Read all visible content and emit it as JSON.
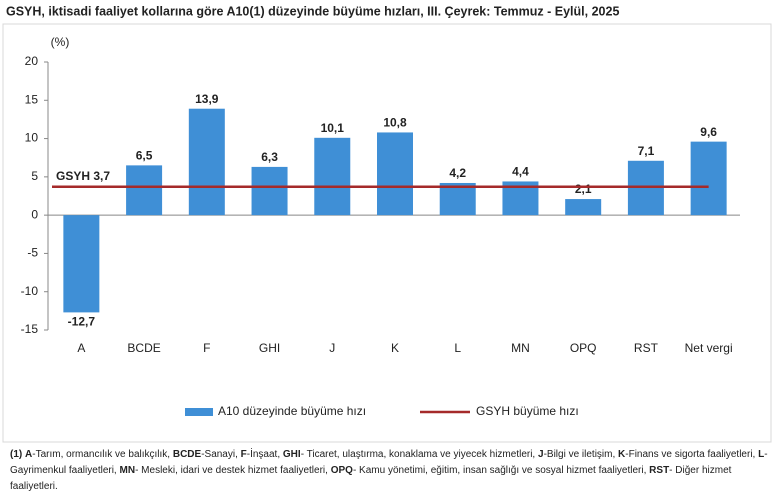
{
  "chart_data": {
    "type": "bar",
    "title": "GSYH, iktisadi faaliyet kollarına göre A10(1) düzeyinde büyüme hızları, III. Çeyrek: Temmuz - Eylül, 2025",
    "y_unit": "(%)",
    "categories": [
      "A",
      "BCDE",
      "F",
      "GHI",
      "J",
      "K",
      "L",
      "MN",
      "OPQ",
      "RST",
      "Net vergi"
    ],
    "series": [
      {
        "name": "A10 düzeyinde büyüme hızı",
        "color": "#3f8fd6",
        "values": [
          -12.7,
          6.5,
          13.9,
          6.3,
          10.1,
          10.8,
          4.2,
          4.4,
          2.1,
          7.1,
          9.6
        ],
        "value_labels": [
          "-12,7",
          "6,5",
          "13,9",
          "6,3",
          "10,1",
          "10,8",
          "4,2",
          "4,4",
          "2,1",
          "7,1",
          "9,6"
        ]
      }
    ],
    "reference_line": {
      "name": "GSYH büyüme hızı",
      "label": "GSYH 3,7",
      "value": 3.7,
      "color": "#a52a2a"
    },
    "ylim": [
      -15,
      20
    ],
    "yticks": [
      -15,
      -10,
      -5,
      0,
      5,
      10,
      15,
      20
    ],
    "legend": "bottom"
  },
  "footnote": {
    "marker": "(1)",
    "items": [
      {
        "code": "A",
        "text": "-Tarım, ormancılık ve balıkçılık,"
      },
      {
        "code": "BCDE",
        "text": "-Sanayi,"
      },
      {
        "code": "F",
        "text": "-İnşaat,"
      },
      {
        "code": "GHI",
        "text": "- Ticaret, ulaştırma, konaklama ve yiyecek hizmetleri,"
      },
      {
        "code": "J",
        "text": "-Bilgi ve iletişim,"
      },
      {
        "code": "K",
        "text": "-Finans ve sigorta faaliyetleri,"
      },
      {
        "code": "L",
        "text": "-Gayrimenkul faaliyetleri,"
      },
      {
        "code": "MN",
        "text": "- Mesleki, idari ve destek hizmet faaliyetleri,"
      },
      {
        "code": "OPQ",
        "text": "- Kamu yönetimi, eğitim, insan sağlığı ve sosyal hizmet faaliyetleri,"
      },
      {
        "code": "RST",
        "text": "- Diğer hizmet faaliyetleri."
      }
    ]
  }
}
